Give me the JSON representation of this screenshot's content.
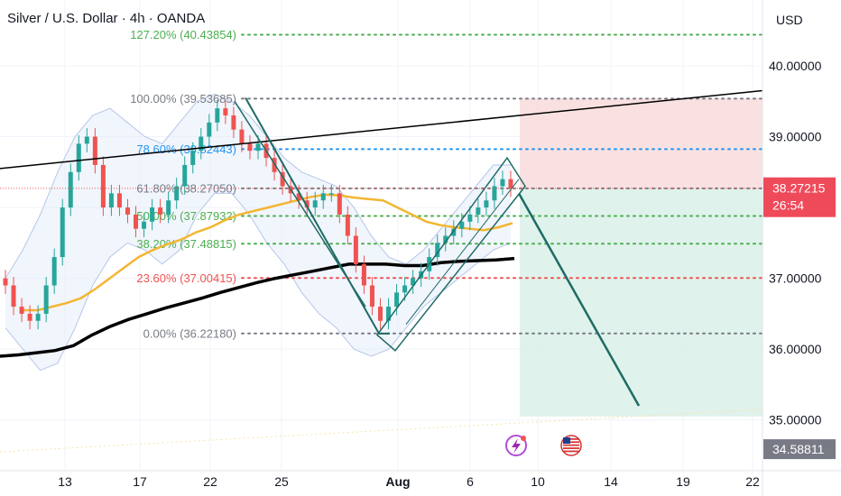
{
  "header": {
    "title": "Silver / U.S. Dollar · 4h · OANDA",
    "currency": "USD"
  },
  "colors": {
    "up": "#26a69a",
    "down": "#ef5350",
    "ema": "#f2b632",
    "sma": "#000000",
    "band": "#b6c7e8",
    "fib_green": "#4caf50",
    "fib_blue": "#2196f3",
    "fib_red": "#ef5350",
    "fib_grey": "#787b86",
    "stop_zone": "#f8d7d7",
    "target_zone": "#d7efe6",
    "trend": "#1e6b66"
  },
  "icons": {
    "flash": "flash-event-icon",
    "flag": "us-flag-icon"
  },
  "chart_data": {
    "type": "candlestick",
    "title": "Silver / U.S. Dollar · 4h · OANDA",
    "ylim": [
      34.5,
      40.7
    ],
    "yticks": [
      "40.00000",
      "39.00000",
      "38.00000",
      "37.00000",
      "36.00000",
      "35.00000"
    ],
    "ytick_values": [
      40,
      39,
      38,
      37,
      36,
      35
    ],
    "xticks": [
      "13",
      "17",
      "22",
      "25",
      "Aug",
      "6",
      "10",
      "14",
      "19",
      "22"
    ],
    "price_label": {
      "price": "38.27215",
      "countdown": "26:54",
      "value": 38.27215
    },
    "bottom_label": {
      "price": "34.58811",
      "value": 34.58811
    },
    "fib_levels": [
      {
        "label": "127.20% (40.43854)",
        "value": 40.43854,
        "color": "green"
      },
      {
        "label": "100.00% (39.53685)",
        "value": 39.53685,
        "color": "grey"
      },
      {
        "label": "78.60% (38.82443)",
        "value": 38.82443,
        "color": "blue"
      },
      {
        "label": "61.80% (38.27050)",
        "value": 38.2705,
        "color": "grey"
      },
      {
        "label": "50.00% (37.87932)",
        "value": 37.87932,
        "color": "green"
      },
      {
        "label": "38.20% (37.48815)",
        "value": 37.48815,
        "color": "green"
      },
      {
        "label": "23.60% (37.00415)",
        "value": 37.00415,
        "color": "red"
      },
      {
        "label": "0.00% (36.22180)",
        "value": 36.2218,
        "color": "grey"
      }
    ],
    "closes": [
      36.9,
      36.6,
      36.5,
      36.4,
      36.5,
      36.9,
      37.3,
      38.0,
      38.5,
      38.9,
      39.0,
      38.6,
      38.0,
      38.2,
      38.0,
      37.9,
      37.7,
      37.8,
      38.0,
      37.9,
      38.1,
      38.3,
      38.6,
      38.8,
      39.0,
      39.2,
      39.4,
      39.3,
      39.1,
      38.9,
      38.8,
      38.9,
      38.7,
      38.5,
      38.3,
      38.2,
      38.1,
      38.0,
      38.1,
      38.2,
      38.2,
      37.9,
      37.6,
      37.2,
      36.9,
      36.6,
      36.4,
      36.6,
      36.8,
      36.9,
      37.0,
      37.1,
      37.3,
      37.5,
      37.6,
      37.7,
      37.8,
      37.9,
      38.0,
      38.1,
      38.3,
      38.4,
      38.27
    ],
    "ema_values": [
      36.55,
      36.55,
      36.6,
      36.65,
      36.72,
      36.85,
      37.0,
      37.15,
      37.3,
      37.4,
      37.48,
      37.55,
      37.65,
      37.72,
      37.82,
      37.9,
      37.95,
      38.0,
      38.05,
      38.1,
      38.15,
      38.18,
      38.17,
      38.14,
      38.12,
      38.1,
      38.0,
      37.9,
      37.8,
      37.75,
      37.72,
      37.7,
      37.68,
      37.72,
      37.78
    ],
    "sma_values": [
      35.9,
      35.92,
      35.95,
      35.98,
      36.05,
      36.2,
      36.32,
      36.42,
      36.5,
      36.58,
      36.65,
      36.72,
      36.8,
      36.87,
      36.94,
      37.0,
      37.05,
      37.1,
      37.15,
      37.2,
      37.2,
      37.2,
      37.18,
      37.18,
      37.22,
      37.24,
      37.25,
      37.26,
      37.28
    ],
    "upper_band": [
      37.0,
      37.4,
      37.9,
      38.5,
      39.0,
      39.3,
      39.4,
      39.2,
      39.0,
      38.9,
      39.2,
      39.5,
      39.6,
      39.5,
      39.3,
      39.0,
      38.7,
      38.5,
      38.4,
      38.3,
      38.0,
      37.6,
      37.3,
      37.2,
      37.4,
      37.7,
      38.0,
      38.3,
      38.6,
      38.6
    ],
    "lower_band": [
      36.3,
      36.0,
      35.7,
      35.8,
      36.3,
      36.9,
      37.3,
      37.5,
      37.4,
      37.2,
      37.4,
      37.9,
      38.2,
      38.2,
      37.9,
      37.5,
      37.2,
      36.8,
      36.5,
      36.3,
      36.0,
      35.9,
      36.0,
      36.3,
      36.6,
      36.8,
      37.0,
      37.2,
      37.4,
      37.5
    ],
    "trendline_upper": [
      38.55,
      39.65
    ],
    "stop_zone": [
      38.27,
      39.54
    ],
    "target_zone": [
      35.05,
      38.27
    ],
    "projection": [
      38.2,
      35.2
    ]
  }
}
